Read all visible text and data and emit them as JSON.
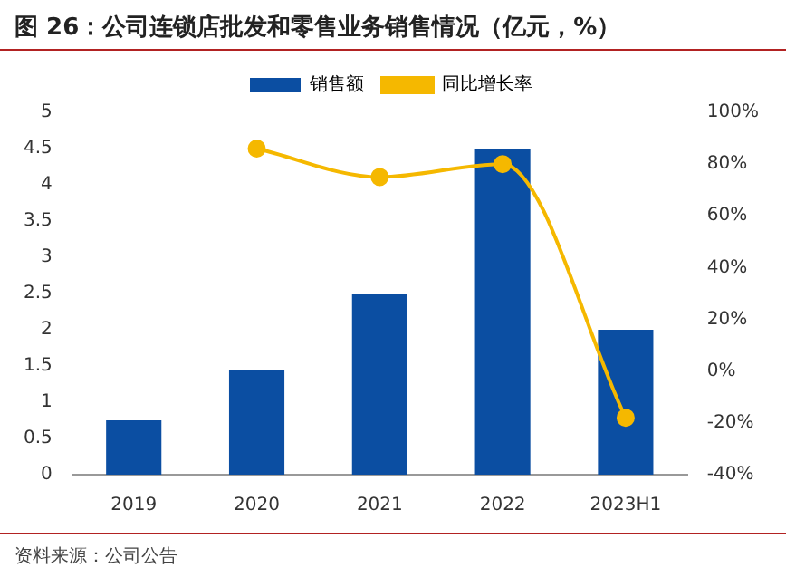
{
  "chart_data": {
    "type": "bar",
    "title": "图 26：公司连锁店批发和零售业务销售情况（亿元，%）",
    "categories": [
      "2019",
      "2020",
      "2021",
      "2022",
      "2023H1"
    ],
    "series": [
      {
        "name": "销售额",
        "color": "#0b4ea2",
        "values": [
          0.75,
          1.45,
          2.5,
          4.5,
          2.0
        ]
      },
      {
        "name": "同比增长率",
        "type": "line",
        "axis": "y2",
        "color": "#f5b800",
        "values": [
          null,
          86,
          75,
          80,
          -18
        ]
      }
    ],
    "ylim": [
      0,
      5
    ],
    "yticks": [
      0,
      0.5,
      1,
      1.5,
      2,
      2.5,
      3,
      3.5,
      4,
      4.5,
      5
    ],
    "y2lim": [
      -40,
      100
    ],
    "y2ticks": [
      {
        "value": -40,
        "label": "-40%"
      },
      {
        "value": -20,
        "label": "-20%"
      },
      {
        "value": 0,
        "label": "0%"
      },
      {
        "value": 20,
        "label": "20%"
      },
      {
        "value": 40,
        "label": "40%"
      },
      {
        "value": 60,
        "label": "60%"
      },
      {
        "value": 80,
        "label": "80%"
      },
      {
        "value": 100,
        "label": "100%"
      }
    ],
    "legend": "top",
    "marker": "circle",
    "grid": false,
    "annotations": [
      "资料来源：公司公告"
    ]
  }
}
